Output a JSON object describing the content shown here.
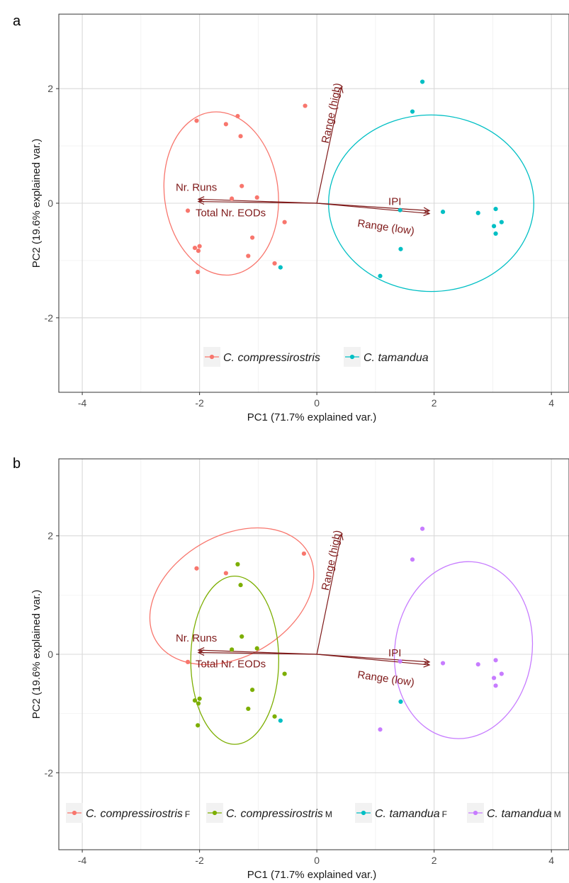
{
  "chart_data": [
    {
      "type": "scatter",
      "panel_label": "a",
      "xlabel": "PC1 (71.7% explained var.)",
      "ylabel": "PC2 (19.6% explained var.)",
      "xlim": [
        -4.4,
        4.3
      ],
      "ylim": [
        -3.3,
        3.3
      ],
      "xticks": [
        -4,
        -2,
        0,
        2,
        4
      ],
      "yticks": [
        -2,
        0,
        2
      ],
      "tick_labels_x": [
        "-4",
        "-2",
        "0",
        "2",
        "4"
      ],
      "tick_labels_y": [
        "-2",
        "0",
        "2"
      ],
      "grid": true,
      "legend_position": "bottom",
      "vector_color": "#7f1a1a",
      "vectors": [
        {
          "label": "Range (high)",
          "x": 0.42,
          "y": 2.03,
          "label_style": "rotated"
        },
        {
          "label": "Nr. Runs",
          "x": -2.02,
          "y": 0.07,
          "label_style": "above"
        },
        {
          "label": "Total Nr. EODs",
          "x": -2.02,
          "y": 0.03,
          "label_style": "below"
        },
        {
          "label": "IPI",
          "x": 1.92,
          "y": -0.13,
          "label_style": "above"
        },
        {
          "label": "Range (low)",
          "x": 1.92,
          "y": -0.18,
          "label_style": "below-rotated"
        }
      ],
      "series": [
        {
          "name": "C. compressirostris",
          "name_suffix": "",
          "color": "#f8766d",
          "points": [
            [
              -2.05,
              1.44
            ],
            [
              -1.55,
              1.38
            ],
            [
              -1.35,
              1.52
            ],
            [
              -1.3,
              1.17
            ],
            [
              -1.28,
              0.3
            ],
            [
              -1.45,
              0.08
            ],
            [
              -1.02,
              0.1
            ],
            [
              -0.2,
              1.7
            ],
            [
              -2.2,
              -0.13
            ],
            [
              -0.55,
              -0.33
            ],
            [
              -1.1,
              -0.6
            ],
            [
              -1.17,
              -0.92
            ],
            [
              -2.08,
              -0.78
            ],
            [
              -2.0,
              -0.75
            ],
            [
              -2.02,
              -0.83
            ],
            [
              -2.03,
              -1.2
            ],
            [
              -0.72,
              -1.05
            ]
          ],
          "ellipse": {
            "cx": -1.63,
            "cy": 0.17,
            "rx": 0.97,
            "ry": 1.43,
            "angle": 7
          }
        },
        {
          "name": "C. tamandua",
          "name_suffix": "",
          "color": "#00bfc4",
          "points": [
            [
              1.8,
              2.12
            ],
            [
              1.63,
              1.6
            ],
            [
              1.42,
              -0.12
            ],
            [
              2.15,
              -0.15
            ],
            [
              2.75,
              -0.17
            ],
            [
              3.05,
              -0.1
            ],
            [
              3.15,
              -0.33
            ],
            [
              3.02,
              -0.4
            ],
            [
              3.05,
              -0.53
            ],
            [
              1.43,
              -0.8
            ],
            [
              1.08,
              -1.27
            ],
            [
              -0.62,
              -1.12
            ]
          ],
          "ellipse": {
            "cx": 1.95,
            "cy": 0.0,
            "rx": 1.75,
            "ry": 1.54,
            "angle": 0
          }
        }
      ]
    },
    {
      "type": "scatter",
      "panel_label": "b",
      "xlabel": "PC1 (71.7% explained var.)",
      "ylabel": "PC2 (19.6% explained var.)",
      "xlim": [
        -4.4,
        4.3
      ],
      "ylim": [
        -3.3,
        3.3
      ],
      "xticks": [
        -4,
        -2,
        0,
        2,
        4
      ],
      "yticks": [
        -2,
        0,
        2
      ],
      "tick_labels_x": [
        "-4",
        "-2",
        "0",
        "2",
        "4"
      ],
      "tick_labels_y": [
        "-2",
        "0",
        "2"
      ],
      "grid": true,
      "legend_position": "bottom",
      "vector_color": "#7f1a1a",
      "vectors": [
        {
          "label": "Range (high)",
          "x": 0.42,
          "y": 2.03,
          "label_style": "rotated"
        },
        {
          "label": "Nr. Runs",
          "x": -2.02,
          "y": 0.07,
          "label_style": "above"
        },
        {
          "label": "Total Nr. EODs",
          "x": -2.02,
          "y": 0.03,
          "label_style": "below"
        },
        {
          "label": "IPI",
          "x": 1.92,
          "y": -0.13,
          "label_style": "above"
        },
        {
          "label": "Range (low)",
          "x": 1.92,
          "y": -0.18,
          "label_style": "below-rotated"
        }
      ],
      "series": [
        {
          "name": "C. compressirostris",
          "name_suffix": "F",
          "color": "#f8766d",
          "points": [
            [
              -2.05,
              1.45
            ],
            [
              -1.55,
              1.37
            ],
            [
              -0.22,
              1.7
            ],
            [
              -2.2,
              -0.13
            ]
          ],
          "ellipse": {
            "cx": -1.45,
            "cy": 0.98,
            "rx": 1.5,
            "ry": 1.02,
            "angle": 30
          }
        },
        {
          "name": "C. compressirostris",
          "name_suffix": "M",
          "color": "#7cae00",
          "points": [
            [
              -1.35,
              1.52
            ],
            [
              -1.3,
              1.17
            ],
            [
              -1.28,
              0.3
            ],
            [
              -1.45,
              0.08
            ],
            [
              -1.02,
              0.1
            ],
            [
              -0.55,
              -0.33
            ],
            [
              -1.1,
              -0.6
            ],
            [
              -1.17,
              -0.92
            ],
            [
              -2.08,
              -0.78
            ],
            [
              -2.0,
              -0.75
            ],
            [
              -2.02,
              -0.83
            ],
            [
              -2.03,
              -1.2
            ],
            [
              -0.72,
              -1.05
            ]
          ],
          "ellipse": {
            "cx": -1.4,
            "cy": -0.1,
            "rx": 0.75,
            "ry": 1.42,
            "angle": 0
          }
        },
        {
          "name": "C. tamandua",
          "name_suffix": "F",
          "color": "#00bfc4",
          "points": [
            [
              1.43,
              -0.8
            ],
            [
              -0.62,
              -1.12
            ]
          ],
          "ellipse": null
        },
        {
          "name": "C. tamandua",
          "name_suffix": "M",
          "color": "#c77cff",
          "points": [
            [
              1.8,
              2.12
            ],
            [
              1.63,
              1.6
            ],
            [
              1.42,
              -0.12
            ],
            [
              2.15,
              -0.15
            ],
            [
              2.75,
              -0.17
            ],
            [
              3.05,
              -0.1
            ],
            [
              3.15,
              -0.33
            ],
            [
              3.02,
              -0.4
            ],
            [
              3.05,
              -0.53
            ],
            [
              1.08,
              -1.27
            ]
          ],
          "ellipse": {
            "cx": 2.5,
            "cy": 0.07,
            "rx": 1.17,
            "ry": 1.5,
            "angle": -8
          }
        }
      ]
    }
  ]
}
